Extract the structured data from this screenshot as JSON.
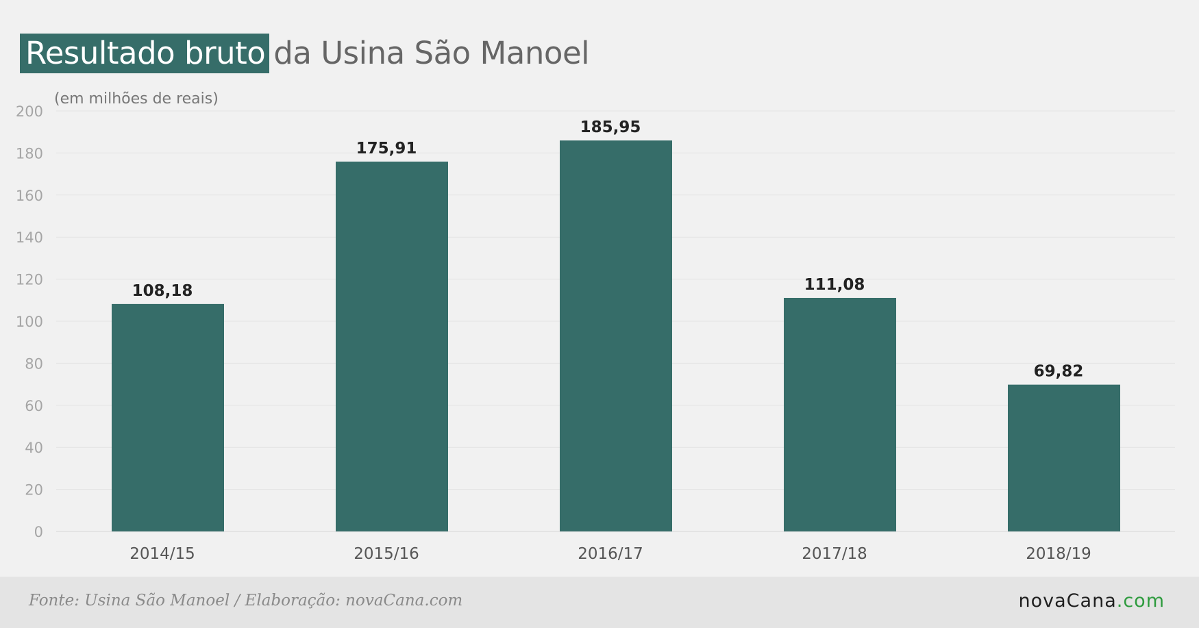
{
  "title": {
    "highlight": "Resultado bruto",
    "rest": "da Usina São Manoel"
  },
  "unit_note": "(em milhões de reais)",
  "footer": {
    "source": "Fonte: Usina São Manoel / Elaboração: novaCana.com",
    "brand_name": "novaCana",
    "brand_tld": ".com"
  },
  "colors": {
    "bar": "#366d69",
    "title_highlight_bg": "#366d69",
    "brand_tld": "#2e9b3e"
  },
  "chart_data": {
    "type": "bar",
    "categories": [
      "2014/15",
      "2015/16",
      "2016/17",
      "2017/18",
      "2018/19"
    ],
    "values": [
      108.18,
      175.91,
      185.95,
      111.08,
      69.82
    ],
    "value_labels": [
      "108,18",
      "175,91",
      "185,95",
      "111,08",
      "69,82"
    ],
    "ylim": [
      0,
      200
    ],
    "yticks": [
      0,
      20,
      40,
      60,
      80,
      100,
      120,
      140,
      160,
      180,
      200
    ],
    "grid": true
  }
}
